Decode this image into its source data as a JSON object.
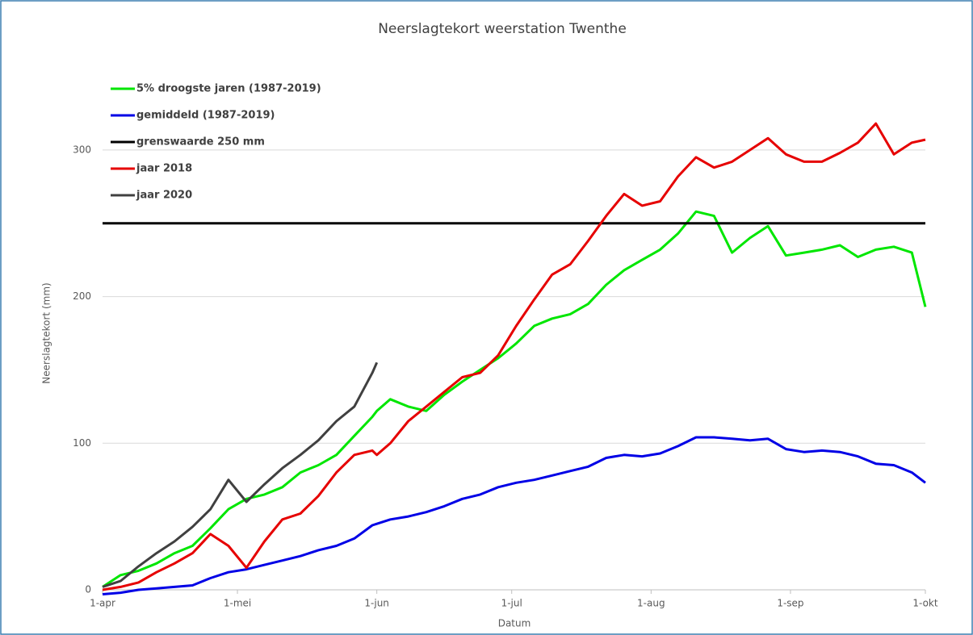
{
  "chart_data": {
    "type": "line",
    "title": "Neerslagtekort weerstation Twenthe",
    "x_label": "Datum",
    "y_label": "Neerslagtekort (mm)",
    "x": [
      0,
      4,
      8,
      12,
      16,
      20,
      24,
      28,
      32,
      36,
      40,
      44,
      48,
      52,
      56,
      60,
      61,
      64,
      68,
      72,
      76,
      80,
      84,
      88,
      92,
      96,
      100,
      104,
      108,
      112,
      116,
      120,
      124,
      128,
      132,
      136,
      140,
      144,
      148,
      152,
      156,
      160,
      164,
      168,
      172,
      176,
      180,
      183
    ],
    "xlim": [
      0,
      183
    ],
    "xticks": [
      {
        "value": 0,
        "label": "1-apr"
      },
      {
        "value": 30,
        "label": "1-mei"
      },
      {
        "value": 61,
        "label": "1-jun"
      },
      {
        "value": 91,
        "label": "1-jul"
      },
      {
        "value": 122,
        "label": "1-aug"
      },
      {
        "value": 153,
        "label": "1-sep"
      },
      {
        "value": 183,
        "label": "1-okt"
      }
    ],
    "ylim": [
      0,
      350
    ],
    "yticks": [
      0,
      100,
      200,
      300
    ],
    "grid": true,
    "legend": "top-left",
    "series": [
      {
        "name": "5% droogste jaren (1987-2019)",
        "color": "#00e600",
        "values": [
          2,
          10,
          13,
          18,
          25,
          30,
          42,
          55,
          62,
          65,
          70,
          80,
          85,
          92,
          105,
          118,
          122,
          130,
          125,
          122,
          133,
          142,
          150,
          158,
          168,
          180,
          185,
          188,
          195,
          208,
          218,
          225,
          232,
          243,
          258,
          255,
          230,
          240,
          248,
          228,
          230,
          232,
          235,
          227,
          232,
          234,
          230,
          193
        ]
      },
      {
        "name": "gemiddeld (1987-2019)",
        "color": "#0000e6",
        "values": [
          -3,
          -2,
          0,
          1,
          2,
          3,
          8,
          12,
          14,
          17,
          20,
          23,
          27,
          30,
          35,
          44,
          45,
          48,
          50,
          53,
          57,
          62,
          65,
          70,
          73,
          75,
          78,
          81,
          84,
          90,
          92,
          91,
          93,
          98,
          104,
          104,
          103,
          102,
          103,
          96,
          94,
          95,
          94,
          91,
          86,
          85,
          80,
          73
        ]
      },
      {
        "name": "grenswaarde 250 mm",
        "color": "#000000",
        "values": [
          250,
          250,
          250,
          250,
          250,
          250,
          250,
          250,
          250,
          250,
          250,
          250,
          250,
          250,
          250,
          250,
          250,
          250,
          250,
          250,
          250,
          250,
          250,
          250,
          250,
          250,
          250,
          250,
          250,
          250,
          250,
          250,
          250,
          250,
          250,
          250,
          250,
          250,
          250,
          250,
          250,
          250,
          250,
          250,
          250,
          250,
          250,
          250
        ]
      },
      {
        "name": "jaar 2018",
        "color": "#e60000",
        "values": [
          0,
          2,
          5,
          12,
          18,
          25,
          38,
          30,
          15,
          33,
          48,
          52,
          64,
          80,
          92,
          95,
          92,
          100,
          115,
          125,
          135,
          145,
          148,
          160,
          180,
          198,
          215,
          222,
          238,
          255,
          270,
          262,
          265,
          282,
          295,
          288,
          292,
          300,
          308,
          297,
          292,
          292,
          298,
          305,
          318,
          297,
          305,
          307
        ]
      },
      {
        "name": "jaar 2020",
        "color": "#404040",
        "values": [
          2,
          6,
          16,
          25,
          33,
          43,
          55,
          75,
          60,
          72,
          83,
          92,
          102,
          115,
          125,
          148,
          155,
          null,
          null,
          null,
          null,
          null,
          null,
          null,
          null,
          null,
          null,
          null,
          null,
          null,
          null,
          null,
          null,
          null,
          null,
          null,
          null,
          null,
          null,
          null,
          null,
          null,
          null,
          null,
          null,
          null,
          null,
          null
        ]
      }
    ]
  }
}
